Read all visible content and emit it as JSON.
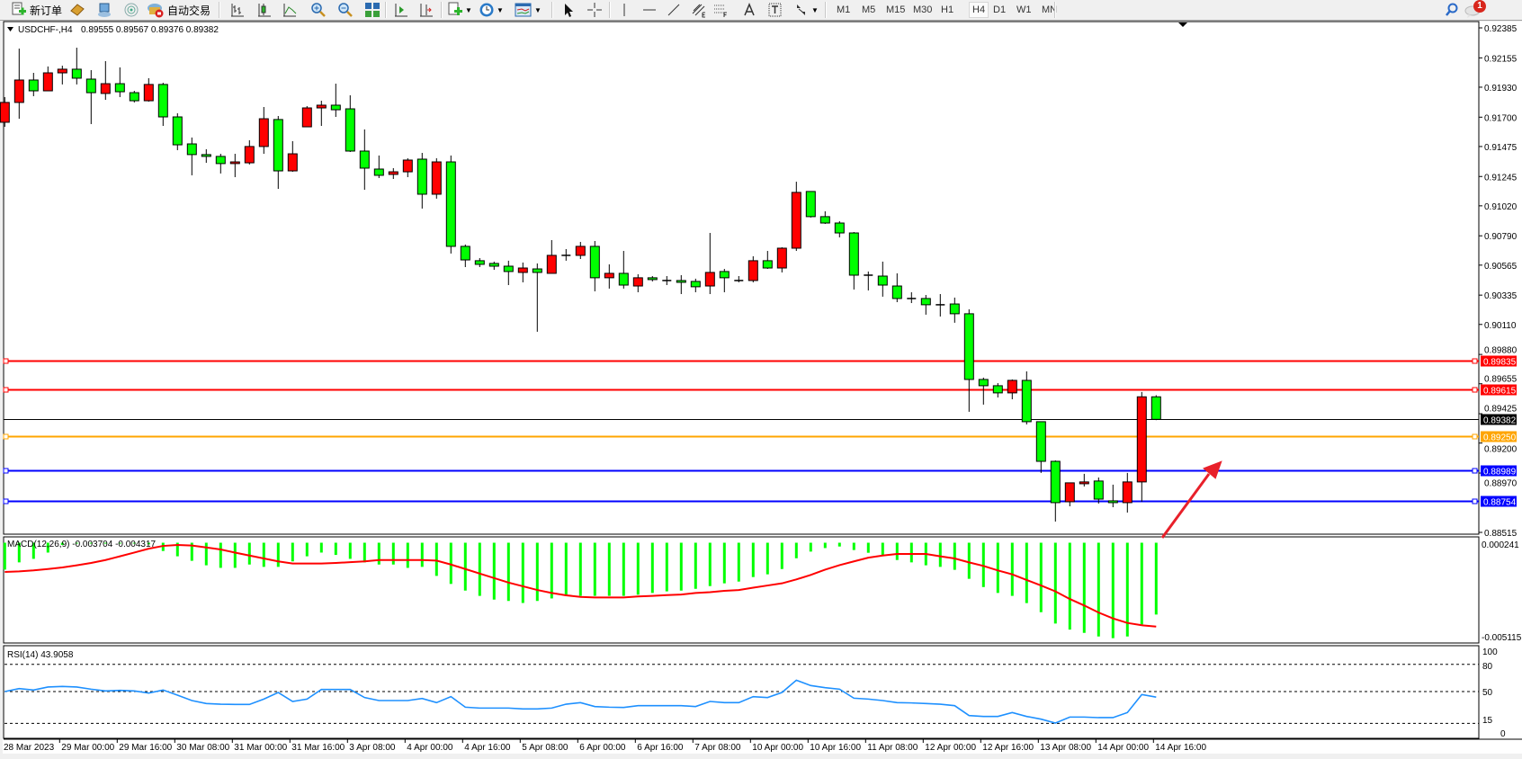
{
  "toolbar": {
    "new_order": "新订单",
    "auto_trading": "自动交易",
    "timeframes": [
      "M1",
      "M5",
      "M15",
      "M30",
      "H1",
      "H4",
      "D1",
      "W1",
      "MN"
    ],
    "active_timeframe": "H4",
    "notification_count": "1",
    "icons": [
      "new-order-icon",
      "strategy-book-icon",
      "navigator-icon",
      "signals-icon",
      "auto-trading-icon",
      "bar-chart-icon",
      "candlestick-icon",
      "line-chart-icon",
      "zoom-in-icon",
      "zoom-out-icon",
      "tile-windows-icon",
      "autoscroll-icon",
      "chart-shift-icon",
      "indicators-icon",
      "periods-icon",
      "templates-icon",
      "cursor-icon",
      "crosshair-icon",
      "vertical-line-icon",
      "horizontal-line-icon",
      "trendline-icon",
      "equidistant-channel-icon",
      "fibonacci-icon",
      "text-icon",
      "text-label-icon",
      "arrows-icon",
      "search-icon",
      "chat-icon"
    ]
  },
  "chart_header": {
    "symbol": "USDCHF-,H4",
    "ohlc": "0.89555 0.89567 0.89376 0.89382"
  },
  "chart_data": {
    "type": "candlestick",
    "symbol": "USDCHF-",
    "timeframe": "H4",
    "bull_color": "#ff0000",
    "bear_color": "#00ff00",
    "ylim": [
      0.88515,
      0.92385
    ],
    "grid": false,
    "price_axis_labels": [
      "0.92385",
      "0.92155",
      "0.91930",
      "0.91700",
      "0.91475",
      "0.91245",
      "0.91020",
      "0.90790",
      "0.90565",
      "0.90335",
      "0.90110",
      "0.89880",
      "0.89655",
      "0.89425",
      "0.89200",
      "0.88970",
      "0.88515"
    ],
    "time_labels": [
      "28 Mar 2023",
      "29 Mar 00:00",
      "29 Mar 16:00",
      "30 Mar 08:00",
      "31 Mar 00:00",
      "31 Mar 16:00",
      "3 Apr 08:00",
      "4 Apr 00:00",
      "4 Apr 16:00",
      "5 Apr 08:00",
      "6 Apr 00:00",
      "6 Apr 16:00",
      "7 Apr 08:00",
      "10 Apr 00:00",
      "10 Apr 16:00",
      "11 Apr 08:00",
      "12 Apr 00:00",
      "12 Apr 16:00",
      "13 Apr 08:00",
      "14 Apr 00:00",
      "14 Apr 16:00"
    ],
    "ohlc": [
      [
        0.91661,
        0.91854,
        0.91626,
        0.91813
      ],
      [
        0.91813,
        0.92226,
        0.91688,
        0.91985
      ],
      [
        0.91985,
        0.9204,
        0.91861,
        0.91902
      ],
      [
        0.91902,
        0.92089,
        0.91902,
        0.9204
      ],
      [
        0.9204,
        0.92095,
        0.91951,
        0.92068
      ],
      [
        0.92068,
        0.92233,
        0.91951,
        0.91999
      ],
      [
        0.91992,
        0.92061,
        0.91647,
        0.91888
      ],
      [
        0.91882,
        0.9213,
        0.91833,
        0.91957
      ],
      [
        0.91957,
        0.92082,
        0.91854,
        0.91895
      ],
      [
        0.91888,
        0.91902,
        0.91813,
        0.91826
      ],
      [
        0.91826,
        0.91999,
        0.91819,
        0.91951
      ],
      [
        0.91951,
        0.91964,
        0.91633,
        0.91702
      ],
      [
        0.91702,
        0.9173,
        0.91447,
        0.91488
      ],
      [
        0.91495,
        0.91544,
        0.91254,
        0.91413
      ],
      [
        0.91413,
        0.91454,
        0.9135,
        0.91399
      ],
      [
        0.91399,
        0.91419,
        0.91268,
        0.91344
      ],
      [
        0.91344,
        0.91419,
        0.9124,
        0.91357
      ],
      [
        0.9135,
        0.91523,
        0.91337,
        0.91475
      ],
      [
        0.91475,
        0.91778,
        0.91419,
        0.91688
      ],
      [
        0.91682,
        0.91709,
        0.9115,
        0.91288
      ],
      [
        0.91288,
        0.91516,
        0.91281,
        0.91419
      ],
      [
        0.91626,
        0.91785,
        0.91626,
        0.91771
      ],
      [
        0.91771,
        0.91826,
        0.91633,
        0.91792
      ],
      [
        0.91792,
        0.91957,
        0.91702,
        0.91757
      ],
      [
        0.91764,
        0.91868,
        0.91433,
        0.9144
      ],
      [
        0.9144,
        0.91606,
        0.91143,
        0.91309
      ],
      [
        0.91302,
        0.91406,
        0.91233,
        0.91254
      ],
      [
        0.91261,
        0.91309,
        0.91226,
        0.91281
      ],
      [
        0.91281,
        0.91385,
        0.9124,
        0.91371
      ],
      [
        0.91378,
        0.91426,
        0.90999,
        0.91109
      ],
      [
        0.91109,
        0.91385,
        0.91075,
        0.91357
      ],
      [
        0.91357,
        0.91406,
        0.90654,
        0.90709
      ],
      [
        0.90709,
        0.90723,
        0.9055,
        0.90605
      ],
      [
        0.90599,
        0.90619,
        0.9055,
        0.90571
      ],
      [
        0.90578,
        0.90592,
        0.90529,
        0.90557
      ],
      [
        0.90557,
        0.90599,
        0.90412,
        0.90516
      ],
      [
        0.90509,
        0.90585,
        0.90433,
        0.90543
      ],
      [
        0.90536,
        0.90578,
        0.90054,
        0.90509
      ],
      [
        0.90502,
        0.90757,
        0.90502,
        0.9064
      ],
      [
        0.9064,
        0.90688,
        0.90599,
        0.9064
      ],
      [
        0.9064,
        0.90743,
        0.90612,
        0.90709
      ],
      [
        0.90709,
        0.9075,
        0.90364,
        0.90468
      ],
      [
        0.90468,
        0.90571,
        0.90385,
        0.90502
      ],
      [
        0.90502,
        0.90674,
        0.90385,
        0.90412
      ],
      [
        0.90405,
        0.90495,
        0.90357,
        0.90468
      ],
      [
        0.90468,
        0.90481,
        0.9044,
        0.90454
      ],
      [
        0.90447,
        0.90481,
        0.90412,
        0.90447
      ],
      [
        0.90447,
        0.90488,
        0.90343,
        0.90433
      ],
      [
        0.9044,
        0.90461,
        0.90357,
        0.90399
      ],
      [
        0.90405,
        0.90812,
        0.90343,
        0.90509
      ],
      [
        0.90516,
        0.90536,
        0.90357,
        0.90468
      ],
      [
        0.90447,
        0.90481,
        0.90433,
        0.90447
      ],
      [
        0.90447,
        0.90633,
        0.90433,
        0.90599
      ],
      [
        0.90599,
        0.90674,
        0.90536,
        0.90543
      ],
      [
        0.90543,
        0.90702,
        0.90509,
        0.90695
      ],
      [
        0.90695,
        0.91205,
        0.90674,
        0.91123
      ],
      [
        0.9113,
        0.9113,
        0.9093,
        0.90937
      ],
      [
        0.90937,
        0.90978,
        0.90881,
        0.90888
      ],
      [
        0.90888,
        0.90902,
        0.90778,
        0.90812
      ],
      [
        0.90812,
        0.90819,
        0.90378,
        0.90488
      ],
      [
        0.90488,
        0.90516,
        0.90371,
        0.90488
      ],
      [
        0.90481,
        0.90592,
        0.90323,
        0.90412
      ],
      [
        0.90405,
        0.90502,
        0.90281,
        0.90309
      ],
      [
        0.90309,
        0.90357,
        0.90274,
        0.90309
      ],
      [
        0.90309,
        0.90336,
        0.90185,
        0.90261
      ],
      [
        0.90261,
        0.90343,
        0.90171,
        0.90261
      ],
      [
        0.90267,
        0.90316,
        0.90123,
        0.90192
      ],
      [
        0.90192,
        0.90226,
        0.8944,
        0.89688
      ],
      [
        0.89688,
        0.89702,
        0.89495,
        0.8964
      ],
      [
        0.8964,
        0.8966,
        0.8955,
        0.89585
      ],
      [
        0.89585,
        0.89688,
        0.89536,
        0.89681
      ],
      [
        0.89681,
        0.8975,
        0.89343,
        0.89364
      ],
      [
        0.89364,
        0.89364,
        0.88971,
        0.8906
      ],
      [
        0.8906,
        0.89067,
        0.88598,
        0.88743
      ],
      [
        0.8875,
        0.88895,
        0.88715,
        0.88895
      ],
      [
        0.88888,
        0.88964,
        0.88867,
        0.88902
      ],
      [
        0.88909,
        0.88936,
        0.88736,
        0.8877
      ],
      [
        0.88757,
        0.88881,
        0.88708,
        0.88743
      ],
      [
        0.88743,
        0.88971,
        0.88667,
        0.88902
      ],
      [
        0.88902,
        0.89592,
        0.8875,
        0.89555
      ],
      [
        0.89555,
        0.89567,
        0.89376,
        0.89382
      ]
    ],
    "levels": [
      {
        "price": 0.89835,
        "label": "0.89835",
        "color": "#ff0000"
      },
      {
        "price": 0.89615,
        "label": "0.89615",
        "color": "#ff0000"
      },
      {
        "price": 0.8925,
        "label": "0.89250",
        "color": "#ffa500"
      },
      {
        "price": 0.88989,
        "label": "0.88989",
        "color": "#0000ff"
      },
      {
        "price": 0.88754,
        "label": "0.88754",
        "color": "#0000ff"
      }
    ],
    "bid": {
      "price": 0.89382,
      "label": "0.89382",
      "color": "#000000"
    },
    "annotation_arrow_color": "#e8202a",
    "macd": {
      "label": "MACD(12,26,9) -0.003704 -0.004317",
      "axis_labels": [
        "0.000241",
        "-0.005115"
      ],
      "range": [
        -0.005115,
        0.000241
      ],
      "histogram_color": "#00ff00",
      "signal_color": "#ff0000",
      "histogram": [
        -0.00141,
        -0.00104,
        -0.00086,
        -0.00054,
        -0.00015,
        -8e-05,
        -8e-05,
        -8e-05,
        -3e-05,
        -3e-05,
        -0.00012,
        -0.00046,
        -0.00073,
        -0.00096,
        -0.00119,
        -0.00132,
        -0.00132,
        -0.00115,
        -0.00127,
        -0.00127,
        -0.00099,
        -0.00073,
        -0.00054,
        -0.00066,
        -0.00086,
        -0.00104,
        -0.00115,
        -0.00115,
        -0.00132,
        -0.00127,
        -0.00173,
        -0.00214,
        -0.00248,
        -0.00275,
        -0.00294,
        -0.00301,
        -0.00311,
        -0.00301,
        -0.00288,
        -0.00275,
        -0.00275,
        -0.00275,
        -0.00275,
        -0.00275,
        -0.00269,
        -0.0026,
        -0.00252,
        -0.00248,
        -0.00239,
        -0.00225,
        -0.00211,
        -0.00202,
        -0.00179,
        -0.00165,
        -0.00138,
        -0.00083,
        -0.00049,
        -0.00031,
        -0.00023,
        -0.00041,
        -0.00055,
        -0.00067,
        -0.00092,
        -0.00104,
        -0.00119,
        -0.00127,
        -0.00142,
        -0.00188,
        -0.0023,
        -0.0026,
        -0.00275,
        -0.00312,
        -0.00358,
        -0.00416,
        -0.00447,
        -0.00464,
        -0.00482,
        -0.00491,
        -0.00482,
        -0.00421,
        -0.003704
      ],
      "signal": [
        -0.00153,
        -0.0015,
        -0.00145,
        -0.00138,
        -0.0013,
        -0.00119,
        -0.00107,
        -0.00092,
        -0.00073,
        -0.00054,
        -0.00034,
        -0.0002,
        -0.00015,
        -0.00018,
        -0.00028,
        -0.00038,
        -0.00054,
        -0.00069,
        -0.00084,
        -0.00099,
        -0.0011,
        -0.0011,
        -0.0011,
        -0.00107,
        -0.00103,
        -0.00099,
        -0.00092,
        -0.00092,
        -0.00092,
        -0.00092,
        -0.00095,
        -0.00115,
        -0.00138,
        -0.00161,
        -0.00184,
        -0.00207,
        -0.00226,
        -0.00245,
        -0.0026,
        -0.00272,
        -0.0028,
        -0.00283,
        -0.00283,
        -0.00283,
        -0.00278,
        -0.00275,
        -0.00271,
        -0.00268,
        -0.0026,
        -0.00256,
        -0.00249,
        -0.00245,
        -0.00233,
        -0.00222,
        -0.00211,
        -0.00191,
        -0.00168,
        -0.00141,
        -0.00118,
        -0.00099,
        -0.0008,
        -0.00069,
        -0.00061,
        -0.00061,
        -0.00061,
        -0.00073,
        -0.00084,
        -0.00104,
        -0.00122,
        -0.00145,
        -0.00165,
        -0.00194,
        -0.00222,
        -0.00252,
        -0.00291,
        -0.00324,
        -0.0036,
        -0.0039,
        -0.00413,
        -0.00425,
        -0.004317
      ]
    },
    "rsi": {
      "label": "RSI(14) 43.9058",
      "axis_labels": [
        "100",
        "80",
        "50",
        "15",
        "0"
      ],
      "levels": [
        80,
        50,
        15
      ],
      "color": "#1e90ff",
      "values": [
        50,
        53.3,
        51.7,
        55,
        55.6,
        55,
        52.6,
        50.7,
        51.3,
        50.7,
        48.3,
        51.7,
        46,
        40.1,
        36.8,
        36.1,
        35.8,
        35.8,
        41.7,
        49,
        39.1,
        41.7,
        52.3,
        52.3,
        52.3,
        43.4,
        40.1,
        40.1,
        40.1,
        42.4,
        37.8,
        44.4,
        32.8,
        31.8,
        31.8,
        31.8,
        30.9,
        30.9,
        31.8,
        36.1,
        37.8,
        33.5,
        32.8,
        32.5,
        34.5,
        34.5,
        34.5,
        34.5,
        33.5,
        39.1,
        37.8,
        37.8,
        44.4,
        43.4,
        49,
        62.5,
        56.6,
        54.3,
        52.6,
        42.7,
        41.7,
        40.1,
        37.8,
        37.5,
        36.8,
        36.1,
        34.5,
        23.6,
        22.6,
        22.6,
        26.9,
        22.6,
        19.6,
        15.3,
        21.9,
        21.9,
        21.3,
        21.3,
        26.9,
        46.7,
        43.9058
      ]
    }
  }
}
